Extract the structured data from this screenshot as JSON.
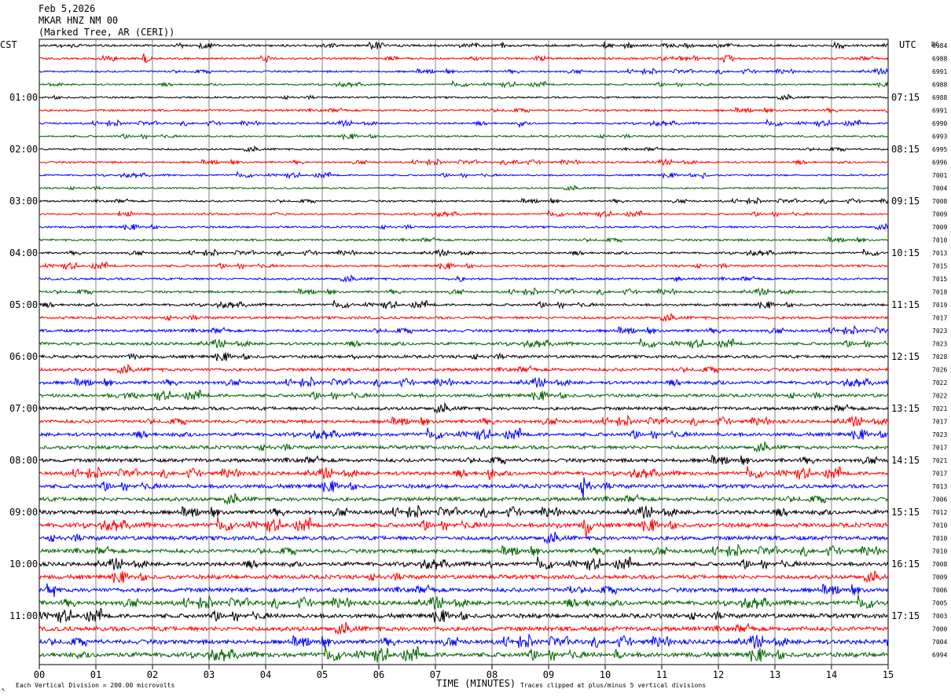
{
  "header": {
    "date": "Feb 5,2026",
    "station": "MKAR HNZ NM 00",
    "location": "(Marked Tree, AR (CERI))"
  },
  "footer": {
    "scale_note": "Each Vertical Division =  200.00 microvolts",
    "clip_note": "Traces clipped at plus/minus 5 vertical divisions",
    "corner_mark": "↖"
  },
  "chart_data": {
    "type": "line",
    "title": "",
    "xlabel": "TIME (MINUTES)",
    "ylabel": "",
    "left_axis_label": "CST",
    "right_axis_label": "UTC",
    "dc_label": "DC",
    "xlim": [
      0,
      15
    ],
    "x_ticks": [
      "00",
      "01",
      "02",
      "03",
      "04",
      "05",
      "06",
      "07",
      "08",
      "09",
      "10",
      "11",
      "12",
      "13",
      "14",
      "15"
    ],
    "grid": true,
    "trace_colors": [
      "#000000",
      "#ff0000",
      "#0000ff",
      "#006400"
    ],
    "left_hour_labels": [
      "01:00",
      "02:00",
      "03:00",
      "04:00",
      "05:00",
      "06:00",
      "07:00",
      "08:00",
      "09:00",
      "10:00",
      "11:00"
    ],
    "right_hour_labels": [
      "07:15",
      "08:15",
      "09:15",
      "10:15",
      "11:15",
      "12:15",
      "13:15",
      "14:15",
      "15:15",
      "16:15",
      "17:15"
    ],
    "dc_offsets": [
      "6984",
      "6988",
      "6991",
      "6988",
      "6988",
      "6991",
      "6990",
      "6993",
      "6995",
      "6996",
      "7001",
      "7004",
      "7008",
      "7009",
      "7009",
      "7010",
      "7013",
      "7015",
      "7015",
      "7018",
      "7019",
      "7017",
      "7023",
      "7023",
      "7028",
      "7026",
      "7022",
      "7022",
      "7021",
      "7017",
      "7023",
      "7017",
      "7021",
      "7017",
      "7013",
      "7006",
      "7012",
      "7010",
      "7010",
      "7010",
      "7008",
      "7009",
      "7006",
      "7005",
      "7003",
      "7000",
      "7004",
      "6994"
    ],
    "trace_activity": [
      1.2,
      1.1,
      1.0,
      0.9,
      1.0,
      1.1,
      1.0,
      1.0,
      1.0,
      1.0,
      0.9,
      0.9,
      1.0,
      1.0,
      1.1,
      1.1,
      1.1,
      1.2,
      1.2,
      1.2,
      1.3,
      1.4,
      1.5,
      1.5,
      1.6,
      1.7,
      1.7,
      1.7,
      1.8,
      1.8,
      1.9,
      1.9,
      2.0,
      2.0,
      2.1,
      2.1,
      2.2,
      2.3,
      2.2,
      2.1,
      2.1,
      2.2,
      2.3,
      2.3,
      2.3,
      2.4,
      2.4,
      2.5
    ],
    "events": [
      {
        "trace": 0,
        "minute": 3.0,
        "amplitude": 3.5
      },
      {
        "trace": 0,
        "minute": 10.0,
        "amplitude": 4.0
      },
      {
        "trace": 1,
        "minute": 1.85,
        "amplitude": 4.5
      },
      {
        "trace": 1,
        "minute": 12.1,
        "amplitude": 3.5
      },
      {
        "trace": 6,
        "minute": 8.5,
        "amplitude": 4.0
      },
      {
        "trace": 9,
        "minute": 8.4,
        "amplitude": 3.0
      },
      {
        "trace": 10,
        "minute": 11.7,
        "amplitude": 3.0
      },
      {
        "trace": 18,
        "minute": 7.4,
        "amplitude": 3.5
      },
      {
        "trace": 18,
        "minute": 11.25,
        "amplitude": 3.0
      },
      {
        "trace": 24,
        "minute": 5.55,
        "amplitude": 4.0
      },
      {
        "trace": 33,
        "minute": 7.95,
        "amplitude": 6.0
      },
      {
        "trace": 34,
        "minute": 9.6,
        "amplitude": 12.0
      },
      {
        "trace": 37,
        "minute": 9.65,
        "amplitude": 12.0
      },
      {
        "trace": 37,
        "minute": 9.1,
        "amplitude": 5.0
      },
      {
        "trace": 40,
        "minute": 7.95,
        "amplitude": 5.0
      },
      {
        "trace": 42,
        "minute": 9.35,
        "amplitude": 5.0
      },
      {
        "trace": 43,
        "minute": 9.7,
        "amplitude": 5.0
      },
      {
        "trace": 47,
        "minute": 10.2,
        "amplitude": 6.0
      }
    ]
  }
}
